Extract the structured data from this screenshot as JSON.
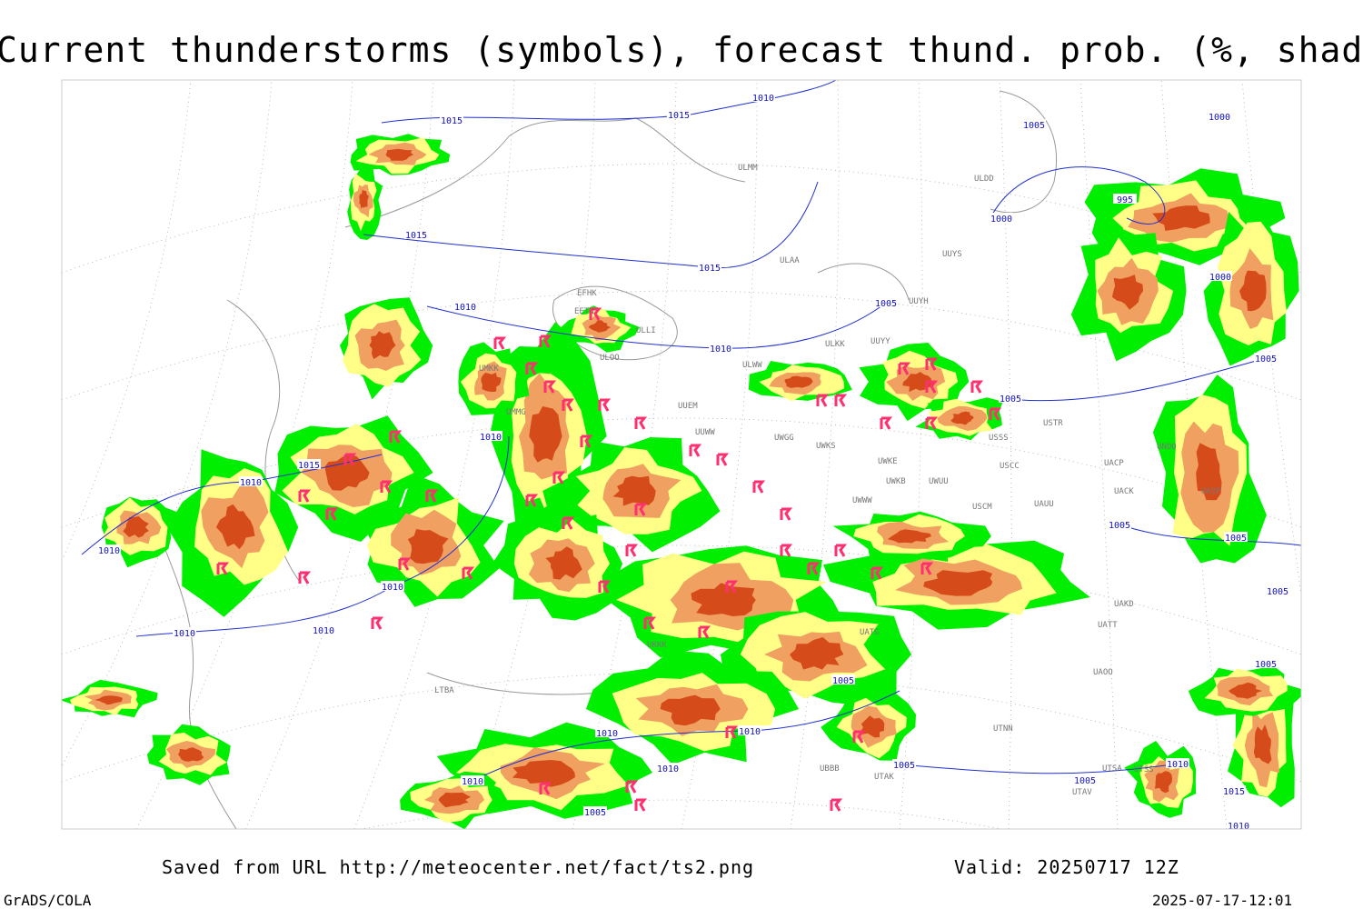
{
  "title": "Current thunderstorms (symbols), forecast thund. prob. (%, shaded)",
  "footer": {
    "source": "Saved from URL http://meteocenter.net/fact/ts2.png",
    "valid": "Valid: 20250717 12Z",
    "software": "GrADS/COLA",
    "timestamp": "2025-07-17-12:01"
  },
  "map": {
    "isobar_labels": [
      1010,
      1015,
      1015,
      1015,
      1015,
      1010,
      1010,
      1010,
      1015,
      1010,
      1010,
      1010,
      1010,
      1010,
      1010,
      1010,
      1010,
      1010,
      1005,
      1005,
      1005,
      1010,
      1015,
      1010,
      1005,
      1005,
      1005,
      1005,
      1005,
      1000,
      1000,
      995,
      1000,
      1005,
      1005,
      1005,
      1005
    ],
    "stations": [
      "ULMM",
      "ULDD",
      "ULAA",
      "UUYS",
      "UUYH",
      "EFHK",
      "EETN",
      "ULLI",
      "ULOO",
      "ULKK",
      "UUYY",
      "ULWW",
      "UMKK",
      "UUEM",
      "UMMG",
      "UUWW",
      "UWGG",
      "UWKS",
      "USSS",
      "USTR",
      "UWKE",
      "USCC",
      "UACP",
      "UWKB",
      "UWUU",
      "UACK",
      "UWWW",
      "USCM",
      "UAUU",
      "UASP",
      "UNBB",
      "UNOO",
      "UAKD",
      "UAOO",
      "UTNN",
      "UTSA",
      "UTSS",
      "UTAV",
      "UTAK",
      "UBBB",
      "LTBA",
      "UATG",
      "UATT",
      "UKKK"
    ]
  }
}
